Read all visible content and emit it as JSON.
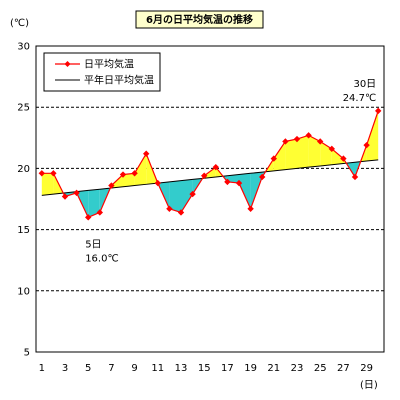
{
  "chart_data": {
    "type": "line",
    "title": "6月の日平均気温の推移",
    "ylabel": "(℃)",
    "xlabel": "(日)",
    "ylim": [
      5,
      30
    ],
    "yticks": [
      5,
      10,
      15,
      20,
      25,
      30
    ],
    "x": [
      1,
      2,
      3,
      4,
      5,
      6,
      7,
      8,
      9,
      10,
      11,
      12,
      13,
      14,
      15,
      16,
      17,
      18,
      19,
      20,
      21,
      22,
      23,
      24,
      25,
      26,
      27,
      28,
      29,
      30
    ],
    "xtick_labels": [
      "1",
      "3",
      "5",
      "7",
      "9",
      "11",
      "13",
      "15",
      "17",
      "19",
      "21",
      "23",
      "25",
      "27",
      "29"
    ],
    "xtick_values": [
      1,
      3,
      5,
      7,
      9,
      11,
      13,
      15,
      17,
      19,
      21,
      23,
      25,
      27,
      29
    ],
    "grid": "horizontal dashed",
    "legend_position": "top-left",
    "series": [
      {
        "name": "日平均気温",
        "color": "#ff0000",
        "marker": "diamond",
        "values": [
          19.6,
          19.6,
          17.7,
          18.0,
          16.0,
          16.4,
          18.6,
          19.5,
          19.6,
          21.2,
          18.8,
          16.7,
          16.4,
          17.9,
          19.4,
          20.1,
          18.9,
          18.8,
          16.7,
          19.3,
          20.8,
          22.2,
          22.4,
          22.7,
          22.2,
          21.6,
          20.8,
          19.3,
          21.9,
          24.7
        ]
      },
      {
        "name": "平年日平均気温",
        "color": "#000000",
        "values": [
          17.8,
          17.9,
          18.0,
          18.1,
          18.2,
          18.3,
          18.4,
          18.5,
          18.6,
          18.7,
          18.8,
          18.9,
          19.0,
          19.1,
          19.2,
          19.3,
          19.4,
          19.5,
          19.6,
          19.7,
          19.8,
          19.9,
          20.0,
          20.1,
          20.2,
          20.3,
          20.4,
          20.5,
          20.6,
          20.7
        ]
      }
    ],
    "fill_colors": {
      "above": "#ffff33",
      "below": "#33cccc"
    },
    "annotations": [
      {
        "x": 5,
        "line1": "5日",
        "line2": "16.0℃"
      },
      {
        "x": 30,
        "line1": "30日",
        "line2": "24.7℃"
      }
    ]
  }
}
